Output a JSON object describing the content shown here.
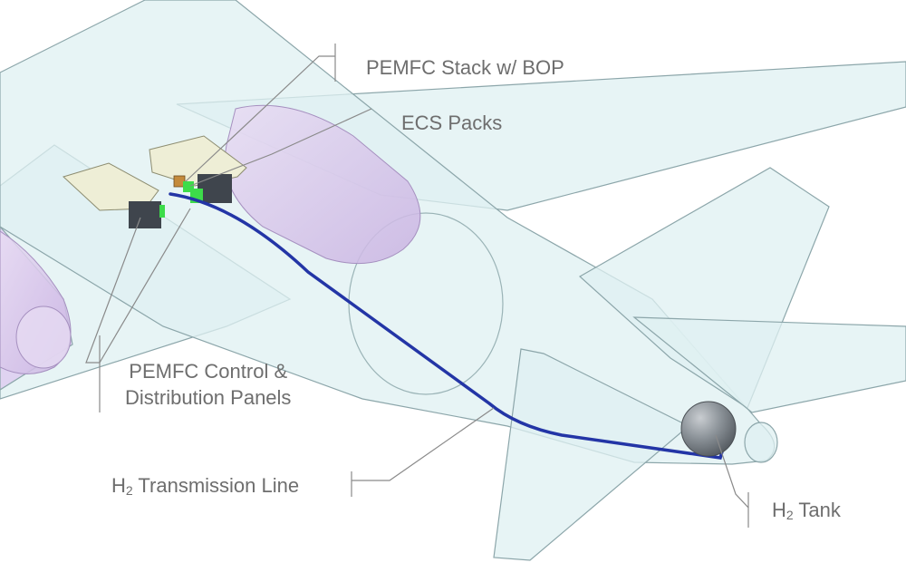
{
  "labels": {
    "stack": "PEMFC Stack w/ BOP",
    "ecs": "ECS Packs",
    "panels_line1": "PEMFC Control &",
    "panels_line2": "Distribution Panels",
    "line_prefix": "H",
    "line_sub": "2",
    "line_rest": " Transmission Line",
    "tank_prefix": "H",
    "tank_sub": "2",
    "tank_rest": " Tank"
  },
  "colors": {
    "skin_fill": "#dff0f1",
    "skin_stroke": "#8ca6aa",
    "nacelle_fill": "#ddcaec",
    "transmission_line": "#2335a6",
    "tank": "#7b8289",
    "pemfc_box": "#3f454d",
    "ecs_box": "#eeeed6",
    "fitting_green": "#3ddc4a",
    "callout_line": "#8a8a8a",
    "callout_text": "#6e6e6e"
  }
}
